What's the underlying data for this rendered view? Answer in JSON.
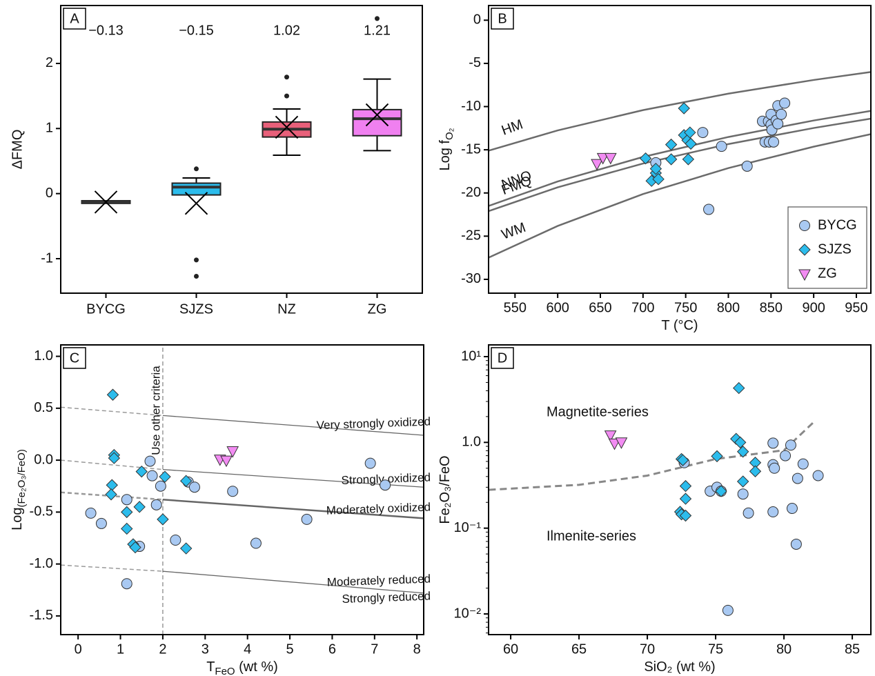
{
  "chart_data": [
    {
      "type": "box",
      "label": "A",
      "ylabel": "ΔFMQ",
      "categories": [
        "BYCG",
        "SJZS",
        "NZ",
        "ZG"
      ],
      "colors": [
        "#333333",
        "#2cbcec",
        "#e8607a",
        "#f080f0"
      ],
      "min": [
        -0.14,
        -0.01,
        0.59,
        0.66
      ],
      "q1": [
        -0.14,
        -0.01,
        0.88,
        0.9
      ],
      "median": [
        -0.13,
        0.1,
        0.99,
        1.15
      ],
      "q3": [
        -0.12,
        0.15,
        1.09,
        1.28
      ],
      "max": [
        -0.12,
        0.24,
        1.3,
        1.76
      ],
      "outliers": [
        [],
        [
          0.38,
          -1.02,
          -1.27
        ],
        [
          1.5,
          1.79
        ],
        [
          2.69
        ]
      ],
      "mean": [
        -0.13,
        -0.15,
        1.02,
        1.21
      ],
      "value_labels": [
        "−0.13",
        "−0.15",
        "1.02",
        "1.21"
      ],
      "ylim": [
        -1.53,
        2.89
      ],
      "yticks": [
        -1,
        0,
        1,
        2
      ]
    },
    {
      "type": "scatter",
      "label": "B",
      "ylabel": {
        "text": "Log f",
        "sub": "O₂"
      },
      "xlabel": {
        "text": "T (°C)"
      },
      "xlim": [
        519,
        967
      ],
      "xticks": [
        550,
        600,
        650,
        700,
        750,
        800,
        850,
        900,
        950
      ],
      "ylim": [
        -31.6,
        1.7
      ],
      "yticks": [
        0,
        -5,
        -10,
        -15,
        -20,
        -25,
        -30
      ],
      "legend": "bottom-right",
      "curves": [
        {
          "name": "HM",
          "x": [
            519,
            600,
            700,
            800,
            900,
            967
          ],
          "y": [
            -15.1,
            -12.76,
            -10.41,
            -8.5,
            -6.92,
            -6.0
          ]
        },
        {
          "name": "NNO",
          "x": [
            519,
            600,
            700,
            800,
            900,
            967
          ],
          "y": [
            -21.5,
            -18.67,
            -15.83,
            -13.52,
            -11.61,
            -10.5
          ]
        },
        {
          "name": "FMQ",
          "x": [
            519,
            600,
            700,
            800,
            900,
            967
          ],
          "y": [
            -22.1,
            -19.35,
            -16.59,
            -14.34,
            -12.48,
            -11.4
          ]
        },
        {
          "name": "WM",
          "x": [
            519,
            600,
            700,
            800,
            900,
            967
          ],
          "y": [
            -27.49,
            -23.82,
            -20.13,
            -17.12,
            -14.64,
            -13.19
          ]
        }
      ],
      "series": [
        {
          "name": "BYCG",
          "marker": "circle",
          "color": "#a9c9f2",
          "x": [
            715,
            770,
            777,
            792,
            822,
            840,
            843,
            847,
            848,
            850,
            850,
            851,
            853,
            856,
            858,
            858,
            862,
            866
          ],
          "y": [
            -16.5,
            -13.0,
            -21.9,
            -14.6,
            -16.9,
            -11.7,
            -14.1,
            -11.7,
            -14.1,
            -10.9,
            -12.1,
            -12.7,
            -14.1,
            -11.6,
            -12.0,
            -9.9,
            -10.9,
            -9.6
          ]
        },
        {
          "name": "SJZS",
          "marker": "diamond",
          "color": "#2cbcec",
          "x": [
            703,
            710,
            715,
            715,
            718,
            733,
            733,
            748,
            748,
            752,
            753,
            755,
            756
          ],
          "y": [
            -16.0,
            -18.6,
            -17.7,
            -17.2,
            -18.4,
            -14.4,
            -16.1,
            -13.3,
            -10.2,
            -13.9,
            -16.1,
            -13.0,
            -14.3
          ]
        },
        {
          "name": "ZG",
          "marker": "triangle-down",
          "color": "#f28cf2",
          "x": [
            646,
            653,
            662
          ],
          "y": [
            -16.6,
            -15.9,
            -15.9
          ]
        }
      ]
    },
    {
      "type": "scatter",
      "label": "C",
      "ylabel": {
        "text": "Log",
        "sub": "(Fe₂O₃/FeO)"
      },
      "xlabel": {
        "text": "T",
        "sub": "FeO",
        "rest": " (wt %)"
      },
      "xlim": [
        -0.41,
        8.16
      ],
      "xticks": [
        0,
        1,
        2,
        3,
        4,
        5,
        6,
        7,
        8
      ],
      "ylim": [
        -1.68,
        1.11
      ],
      "yticks": [
        {
          "value": 1,
          "label": "1.0"
        },
        0.5,
        {
          "value": 0,
          "label": "0.0"
        },
        -0.5,
        {
          "value": -1,
          "label": "-1.0"
        },
        -1.5
      ],
      "boundaries": [
        {
          "x": [
            2,
            2
          ],
          "y": [
            -1.68,
            1.11
          ],
          "style": "dashed"
        },
        {
          "x": [
            -0.41,
            2
          ],
          "y": [
            0.51,
            0.43
          ],
          "style": "dashed"
        },
        {
          "x": [
            2,
            8.16
          ],
          "y": [
            0.43,
            0.24
          ],
          "style": "solid"
        },
        {
          "x": [
            -0.41,
            2
          ],
          "y": [
            0.0,
            -0.09
          ],
          "style": "dashed"
        },
        {
          "x": [
            2,
            8.16
          ],
          "y": [
            -0.09,
            -0.26
          ],
          "style": "solid"
        },
        {
          "x": [
            -0.41,
            2
          ],
          "y": [
            -0.31,
            -0.38
          ],
          "style": "dashed"
        },
        {
          "x": [
            2,
            8.16
          ],
          "y": [
            -0.38,
            -0.56
          ],
          "style": "solid"
        },
        {
          "x": [
            -0.41,
            2
          ],
          "y": [
            -1.01,
            -1.07
          ],
          "style": "dashed"
        },
        {
          "x": [
            2,
            8.16
          ],
          "y": [
            -1.07,
            -1.28
          ],
          "style": "solid"
        }
      ],
      "annotations": [
        "Use other criteria",
        "Very strongly oxidized",
        "Strongly oxidized",
        "Moderately oxidized",
        "Moderately reduced",
        "Strongly reduced"
      ],
      "series": [
        {
          "marker": "circle",
          "color": "#a9c9f2",
          "x": [
            0.3,
            0.55,
            1.15,
            1.15,
            1.45,
            1.7,
            1.75,
            1.85,
            1.95,
            2.3,
            2.6,
            2.75,
            3.65,
            4.2,
            5.4,
            6.9,
            7.25
          ],
          "y": [
            -0.51,
            -0.61,
            -0.38,
            -1.19,
            -0.83,
            -0.01,
            -0.15,
            -0.43,
            -0.25,
            -0.77,
            -0.21,
            -0.26,
            -0.3,
            -0.8,
            -0.57,
            -0.03,
            -0.24
          ]
        },
        {
          "marker": "diamond",
          "color": "#2cbcec",
          "x": [
            0.82,
            0.85,
            0.85,
            0.8,
            0.78,
            1.15,
            1.15,
            1.3,
            1.35,
            1.45,
            1.5,
            2.05,
            2.0,
            2.55,
            2.55
          ],
          "y": [
            0.63,
            0.05,
            0.02,
            -0.24,
            -0.33,
            -0.5,
            -0.66,
            -0.81,
            -0.84,
            -0.45,
            -0.11,
            -0.16,
            -0.57,
            -0.2,
            -0.85
          ]
        },
        {
          "marker": "triangle-down",
          "color": "#f28cf2",
          "x": [
            3.35,
            3.5,
            3.65
          ],
          "y": [
            0.01,
            0.0,
            0.09
          ]
        }
      ]
    },
    {
      "type": "scatter",
      "label": "D",
      "ylabel": {
        "text": "Fe₂O₃/FeO"
      },
      "xlabel": {
        "text": "SiO₂ (wt %)"
      },
      "log_y": true,
      "xlim": [
        58.38,
        86.36
      ],
      "xticks": [
        60,
        65,
        70,
        75,
        80,
        85
      ],
      "ylim": [
        0.00574,
        13.7
      ],
      "yticks": [
        {
          "value": 0.01,
          "label": "10⁻²"
        },
        {
          "value": 0.1,
          "label": "10⁻¹"
        },
        {
          "value": 1,
          "label": "1.0"
        },
        {
          "value": 10,
          "label": "10¹"
        }
      ],
      "boundaries": [
        {
          "x": [
            58.4,
            65,
            70,
            75,
            80,
            82.3
          ],
          "y": [
            0.28,
            0.32,
            0.41,
            0.64,
            0.81,
            1.8
          ],
          "style": "dashed"
        }
      ],
      "annotations": [
        "Magnetite-series",
        "Ilmenite-series"
      ],
      "series": [
        {
          "marker": "circle",
          "color": "#a9c9f2",
          "x": [
            72.7,
            74.6,
            75.1,
            75.4,
            75.9,
            77.0,
            77.4,
            79.2,
            79.2,
            79.3,
            79.2,
            80.1,
            80.5,
            80.6,
            80.9,
            81.0,
            81.4,
            82.5
          ],
          "y": [
            0.58,
            0.27,
            0.3,
            0.27,
            0.011,
            0.25,
            0.15,
            0.98,
            0.55,
            0.5,
            0.155,
            0.7,
            0.93,
            0.17,
            0.065,
            0.38,
            0.56,
            0.41
          ]
        },
        {
          "marker": "diamond",
          "color": "#2cbcec",
          "x": [
            72.4,
            72.5,
            72.5,
            72.6,
            72.8,
            72.8,
            72.8,
            75.1,
            75.4,
            76.5,
            76.7,
            76.8,
            77.0,
            77.0,
            77.9,
            77.9
          ],
          "y": [
            0.155,
            0.145,
            0.64,
            0.62,
            0.14,
            0.22,
            0.31,
            0.69,
            0.27,
            1.1,
            4.3,
            1.0,
            0.78,
            0.35,
            0.58,
            0.46
          ]
        },
        {
          "marker": "triangle-down",
          "color": "#f28cf2",
          "x": [
            67.3,
            67.6,
            68.1
          ],
          "y": [
            1.22,
            0.98,
            1.01
          ]
        }
      ]
    }
  ]
}
